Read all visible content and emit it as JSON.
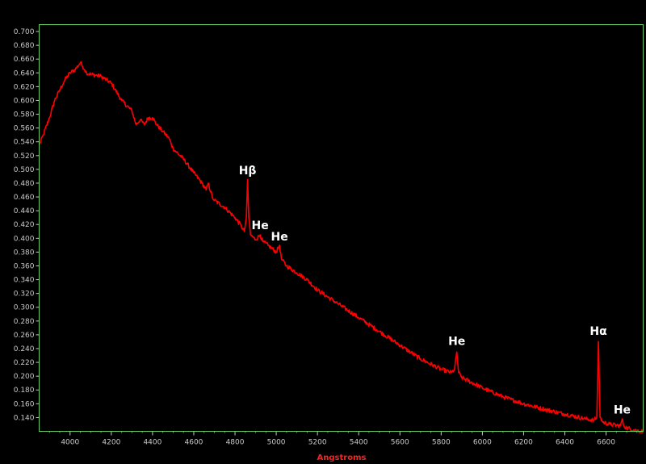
{
  "chart_data": {
    "type": "line",
    "title": "",
    "xlabel": "Angstroms",
    "ylabel": "",
    "xlim": [
      3850,
      6780
    ],
    "ylim": [
      0.12,
      0.71
    ],
    "x_ticks": [
      4000,
      4200,
      4400,
      4600,
      4800,
      5000,
      5200,
      5400,
      5600,
      5800,
      6000,
      6200,
      6400,
      6600
    ],
    "x_tick_labels": [
      "4000",
      "4200",
      "4400",
      "4600",
      "4800",
      "5000",
      "5200",
      "5400",
      "5600",
      "5800",
      "6000",
      "6200",
      "6400",
      "6600"
    ],
    "y_ticks": [
      0.14,
      0.16,
      0.18,
      0.2,
      0.22,
      0.24,
      0.26,
      0.28,
      0.3,
      0.32,
      0.34,
      0.36,
      0.38,
      0.4,
      0.42,
      0.44,
      0.46,
      0.48,
      0.5,
      0.52,
      0.54,
      0.56,
      0.58,
      0.6,
      0.62,
      0.64,
      0.66,
      0.68,
      0.7
    ],
    "y_tick_labels": [
      "0.140",
      "0.160",
      "0.180",
      "0.200",
      "0.220",
      "0.240",
      "0.260",
      "0.280",
      "0.300",
      "0.320",
      "0.340",
      "0.360",
      "0.380",
      "0.400",
      "0.420",
      "0.440",
      "0.460",
      "0.480",
      "0.500",
      "0.520",
      "0.540",
      "0.560",
      "0.580",
      "0.600",
      "0.620",
      "0.640",
      "0.660",
      "0.680",
      "0.700"
    ],
    "grid": false,
    "series": [
      {
        "color": "#ff0000",
        "x": [
          3850,
          3870,
          3900,
          3925,
          3950,
          3975,
          4000,
          4025,
          4050,
          4060,
          4070,
          4080,
          4100,
          4150,
          4200,
          4250,
          4300,
          4320,
          4340,
          4360,
          4380,
          4400,
          4420,
          4450,
          4480,
          4500,
          4550,
          4600,
          4640,
          4660,
          4670,
          4690,
          4700,
          4750,
          4800,
          4830,
          4845,
          4855,
          4861,
          4867,
          4875,
          4900,
          4922,
          4935,
          4960,
          5000,
          5016,
          5025,
          5050,
          5100,
          5150,
          5200,
          5300,
          5400,
          5500,
          5600,
          5700,
          5800,
          5850,
          5865,
          5876,
          5885,
          5900,
          6000,
          6100,
          6200,
          6300,
          6400,
          6500,
          6540,
          6555,
          6563,
          6571,
          6585,
          6620,
          6670,
          6678,
          6686,
          6700,
          6750,
          6780
        ],
        "y": [
          0.535,
          0.55,
          0.575,
          0.6,
          0.615,
          0.63,
          0.64,
          0.645,
          0.655,
          0.65,
          0.645,
          0.64,
          0.638,
          0.635,
          0.625,
          0.6,
          0.585,
          0.565,
          0.572,
          0.565,
          0.575,
          0.575,
          0.565,
          0.555,
          0.545,
          0.53,
          0.515,
          0.495,
          0.48,
          0.47,
          0.48,
          0.46,
          0.455,
          0.445,
          0.43,
          0.418,
          0.41,
          0.43,
          0.485,
          0.43,
          0.405,
          0.398,
          0.405,
          0.395,
          0.39,
          0.38,
          0.39,
          0.37,
          0.36,
          0.35,
          0.34,
          0.325,
          0.305,
          0.285,
          0.265,
          0.245,
          0.225,
          0.21,
          0.205,
          0.21,
          0.235,
          0.205,
          0.198,
          0.183,
          0.17,
          0.16,
          0.152,
          0.145,
          0.138,
          0.136,
          0.14,
          0.25,
          0.14,
          0.133,
          0.13,
          0.128,
          0.138,
          0.128,
          0.125,
          0.121,
          0.12
        ]
      }
    ],
    "annotations": [
      {
        "text": "Hβ",
        "x": 4861,
        "y": 0.493
      },
      {
        "text": "He",
        "x": 4922,
        "y": 0.413
      },
      {
        "text": "He",
        "x": 5016,
        "y": 0.397
      },
      {
        "text": "He",
        "x": 5876,
        "y": 0.245
      },
      {
        "text": "Hα",
        "x": 6563,
        "y": 0.26
      },
      {
        "text": "He",
        "x": 6678,
        "y": 0.146
      }
    ],
    "colors": {
      "background": "#000000",
      "frame": "#66cc66",
      "line": "#ff0000",
      "tick_labels": "#c8c8c8",
      "xlabel": "#ff2020",
      "annotations": "#ffffff"
    }
  }
}
